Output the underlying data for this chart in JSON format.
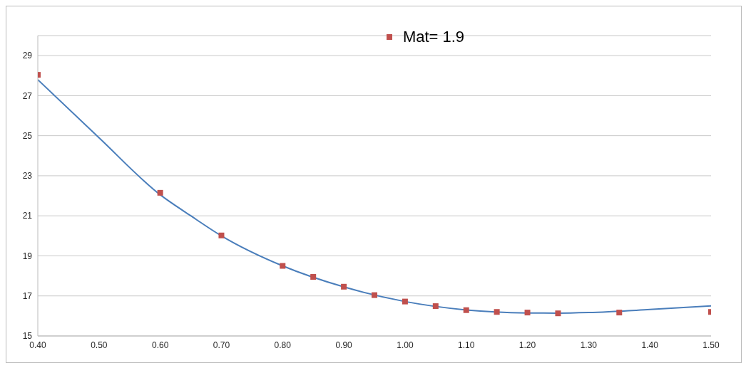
{
  "chart_data": {
    "type": "scatter",
    "legend": "top",
    "grid": "y",
    "marker": "square",
    "xlim": [
      0.4,
      1.5
    ],
    "ylim": [
      15,
      30
    ],
    "xticks": [
      {
        "value": 0.4,
        "label": "0.40"
      },
      {
        "value": 0.5,
        "label": "0.50"
      },
      {
        "value": 0.6,
        "label": "0.60"
      },
      {
        "value": 0.7,
        "label": "0.70"
      },
      {
        "value": 0.8,
        "label": "0.80"
      },
      {
        "value": 0.9,
        "label": "0.90"
      },
      {
        "value": 1.0,
        "label": "1.00"
      },
      {
        "value": 1.1,
        "label": "1.10"
      },
      {
        "value": 1.2,
        "label": "1.20"
      },
      {
        "value": 1.3,
        "label": "1.30"
      },
      {
        "value": 1.4,
        "label": "1.40"
      },
      {
        "value": 1.5,
        "label": "1.50"
      }
    ],
    "yticks": [
      15,
      17,
      19,
      21,
      23,
      25,
      27,
      29
    ],
    "series": [
      {
        "name": "Mat= 1.9",
        "color": "#c0504d",
        "x": [
          0.4,
          0.6,
          0.7,
          0.8,
          0.85,
          0.9,
          0.95,
          1.0,
          1.05,
          1.1,
          1.15,
          1.2,
          1.25,
          1.35,
          1.5
        ],
        "values": [
          28.04,
          22.15,
          20.02,
          18.5,
          17.95,
          17.46,
          17.04,
          16.72,
          16.49,
          16.29,
          16.2,
          16.17,
          16.13,
          16.17,
          16.2
        ]
      },
      {
        "type": "line",
        "color": "#4a7ebb",
        "marker": "none",
        "line_style": "solid",
        "x": [
          0.4,
          0.5,
          0.6,
          0.65,
          0.7,
          0.8,
          0.9,
          1.0,
          1.1,
          1.2,
          1.25,
          1.3,
          1.4,
          1.5
        ],
        "values": [
          27.8,
          24.9,
          22.05,
          21.0,
          20.0,
          18.5,
          17.45,
          16.72,
          16.3,
          16.15,
          16.14,
          16.17,
          16.32,
          16.5
        ]
      }
    ]
  }
}
